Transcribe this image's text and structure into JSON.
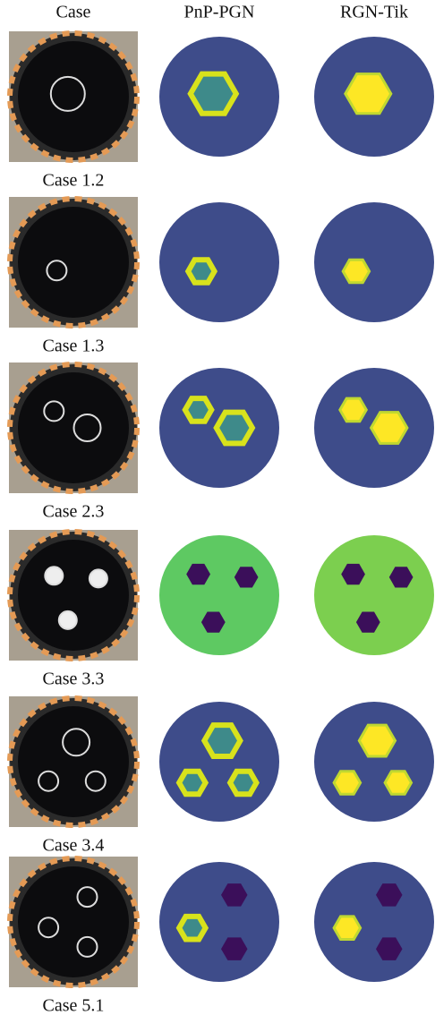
{
  "header": {
    "columns": [
      "Case",
      "PnP-PGN",
      "RGN-Tik"
    ]
  },
  "rows": [
    {
      "label": "Case 1.2"
    },
    {
      "label": "Case 1.3"
    },
    {
      "label": "Case 2.3"
    },
    {
      "label": "Case 3.3"
    },
    {
      "label": "Case 3.4"
    },
    {
      "label": "Case 5.1"
    }
  ]
}
